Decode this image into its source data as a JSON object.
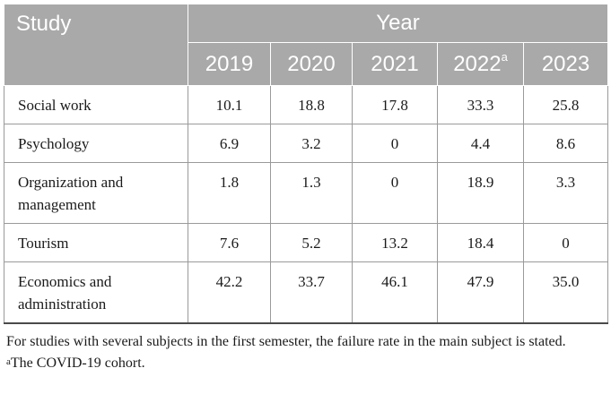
{
  "table": {
    "header": {
      "study_label": "Study",
      "year_label": "Year",
      "years": [
        {
          "label": "2019",
          "mark": ""
        },
        {
          "label": "2020",
          "mark": ""
        },
        {
          "label": "2021",
          "mark": ""
        },
        {
          "label": "2022",
          "mark": "a"
        },
        {
          "label": "2023",
          "mark": ""
        }
      ]
    },
    "rows": [
      {
        "study": "Social work",
        "values": [
          "10.1",
          "18.8",
          "17.8",
          "33.3",
          "25.8"
        ]
      },
      {
        "study": "Psychology",
        "values": [
          "6.9",
          "3.2",
          "0",
          "4.4",
          "8.6"
        ]
      },
      {
        "study": "Organization and management",
        "values": [
          "1.8",
          "1.3",
          "0",
          "18.9",
          "3.3"
        ]
      },
      {
        "study": "Tourism",
        "values": [
          "7.6",
          "5.2",
          "13.2",
          "18.4",
          "0"
        ]
      },
      {
        "study": "Economics and administration",
        "values": [
          "42.2",
          "33.7",
          "46.1",
          "47.9",
          "35.0"
        ]
      }
    ]
  },
  "footnotes": {
    "note": "For studies with several subjects in the first semester, the failure rate in the main subject is stated.",
    "mark": "a",
    "covid": "The COVID-19 cohort."
  }
}
